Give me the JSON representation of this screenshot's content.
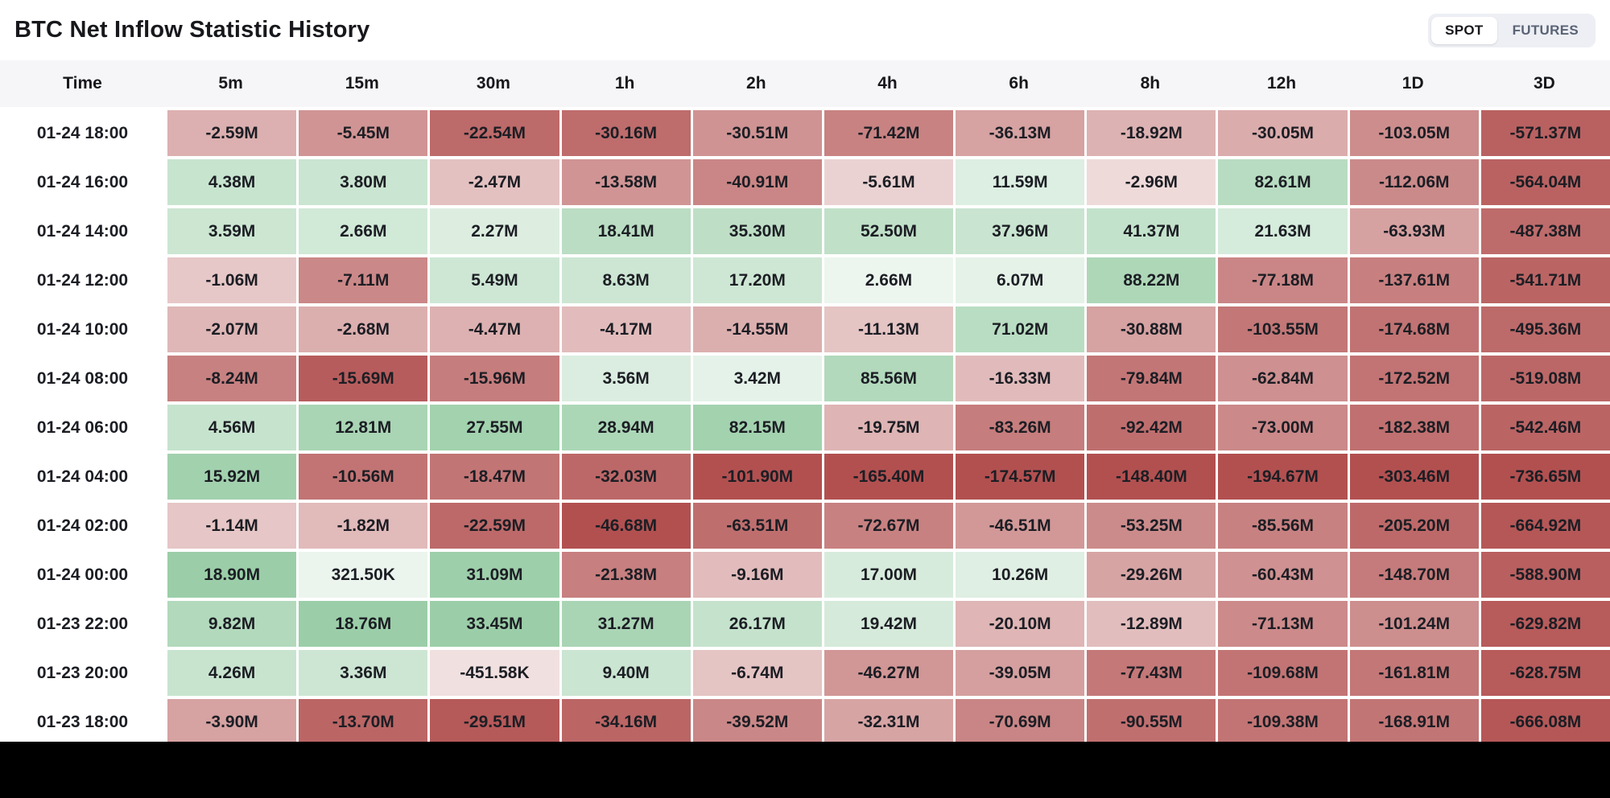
{
  "header": {
    "title": "BTC Net Inflow Statistic History",
    "toggle": {
      "spot_label": "SPOT",
      "futures_label": "FUTURES",
      "active": "SPOT"
    }
  },
  "table": {
    "columns": [
      "Time",
      "5m",
      "15m",
      "30m",
      "1h",
      "2h",
      "4h",
      "6h",
      "8h",
      "12h",
      "1D",
      "3D"
    ],
    "rows": [
      {
        "time": "01-24 18:00",
        "values": [
          "-2.59M",
          "-5.45M",
          "-22.54M",
          "-30.16M",
          "-30.51M",
          "-71.42M",
          "-36.13M",
          "-18.92M",
          "-30.05M",
          "-103.05M",
          "-571.37M"
        ]
      },
      {
        "time": "01-24 16:00",
        "values": [
          "4.38M",
          "3.80M",
          "-2.47M",
          "-13.58M",
          "-40.91M",
          "-5.61M",
          "11.59M",
          "-2.96M",
          "82.61M",
          "-112.06M",
          "-564.04M"
        ]
      },
      {
        "time": "01-24 14:00",
        "values": [
          "3.59M",
          "2.66M",
          "2.27M",
          "18.41M",
          "35.30M",
          "52.50M",
          "37.96M",
          "41.37M",
          "21.63M",
          "-63.93M",
          "-487.38M"
        ]
      },
      {
        "time": "01-24 12:00",
        "values": [
          "-1.06M",
          "-7.11M",
          "5.49M",
          "8.63M",
          "17.20M",
          "2.66M",
          "6.07M",
          "88.22M",
          "-77.18M",
          "-137.61M",
          "-541.71M"
        ]
      },
      {
        "time": "01-24 10:00",
        "values": [
          "-2.07M",
          "-2.68M",
          "-4.47M",
          "-4.17M",
          "-14.55M",
          "-11.13M",
          "71.02M",
          "-30.88M",
          "-103.55M",
          "-174.68M",
          "-495.36M"
        ]
      },
      {
        "time": "01-24 08:00",
        "values": [
          "-8.24M",
          "-15.69M",
          "-15.96M",
          "3.56M",
          "3.42M",
          "85.56M",
          "-16.33M",
          "-79.84M",
          "-62.84M",
          "-172.52M",
          "-519.08M"
        ]
      },
      {
        "time": "01-24 06:00",
        "values": [
          "4.56M",
          "12.81M",
          "27.55M",
          "28.94M",
          "82.15M",
          "-19.75M",
          "-83.26M",
          "-92.42M",
          "-73.00M",
          "-182.38M",
          "-542.46M"
        ]
      },
      {
        "time": "01-24 04:00",
        "values": [
          "15.92M",
          "-10.56M",
          "-18.47M",
          "-32.03M",
          "-101.90M",
          "-165.40M",
          "-174.57M",
          "-148.40M",
          "-194.67M",
          "-303.46M",
          "-736.65M"
        ]
      },
      {
        "time": "01-24 02:00",
        "values": [
          "-1.14M",
          "-1.82M",
          "-22.59M",
          "-46.68M",
          "-63.51M",
          "-72.67M",
          "-46.51M",
          "-53.25M",
          "-85.56M",
          "-205.20M",
          "-664.92M"
        ]
      },
      {
        "time": "01-24 00:00",
        "values": [
          "18.90M",
          "321.50K",
          "31.09M",
          "-21.38M",
          "-9.16M",
          "17.00M",
          "10.26M",
          "-29.26M",
          "-60.43M",
          "-148.70M",
          "-588.90M"
        ]
      },
      {
        "time": "01-23 22:00",
        "values": [
          "9.82M",
          "18.76M",
          "33.45M",
          "31.27M",
          "26.17M",
          "19.42M",
          "-20.10M",
          "-12.89M",
          "-71.13M",
          "-101.24M",
          "-629.82M"
        ]
      },
      {
        "time": "01-23 20:00",
        "values": [
          "4.26M",
          "3.36M",
          "-451.58K",
          "9.40M",
          "-6.74M",
          "-46.27M",
          "-39.05M",
          "-77.43M",
          "-109.68M",
          "-161.81M",
          "-628.75M"
        ]
      },
      {
        "time": "01-23 18:00",
        "values": [
          "-3.90M",
          "-13.70M",
          "-29.51M",
          "-34.16M",
          "-39.52M",
          "-32.31M",
          "-70.69M",
          "-90.55M",
          "-109.38M",
          "-168.91M",
          "-666.08M"
        ]
      }
    ]
  },
  "colors": {
    "positive_full": "#9bcea8",
    "negative_full": "#b25050",
    "header_bg": "#f6f6f8",
    "toggle_bg": "#edeff4",
    "bottom_bar": "#000000"
  }
}
